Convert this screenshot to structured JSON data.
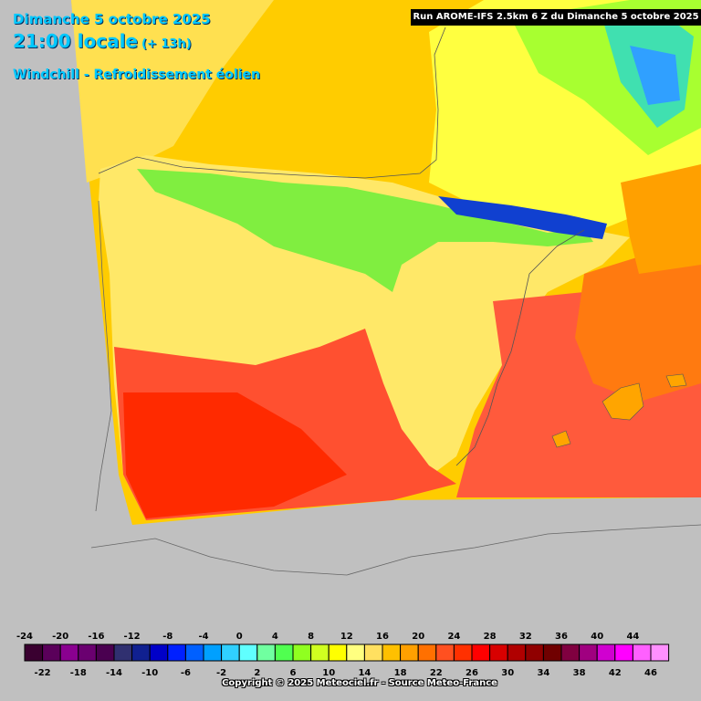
{
  "header": {
    "date": "Dimanche 5 octobre 2025",
    "time": "21:00 locale",
    "lead": "(+ 13h)",
    "parameter": "Windchill - Refroidissement éolien",
    "run": "Run AROME-IFS 2.5km 6 Z du Dimanche 5 octobre 2025"
  },
  "legend": {
    "top_labels": [
      "-24",
      "-20",
      "-16",
      "-12",
      "-8",
      "-4",
      "0",
      "4",
      "8",
      "12",
      "16",
      "20",
      "24",
      "28",
      "32",
      "36",
      "40",
      "44"
    ],
    "bottom_labels": [
      "-22",
      "-18",
      "-14",
      "-10",
      "-6",
      "-2",
      "2",
      "6",
      "10",
      "14",
      "18",
      "22",
      "26",
      "30",
      "34",
      "38",
      "42",
      "46"
    ],
    "colors": [
      "#3a0030",
      "#5a005a",
      "#8a0090",
      "#6a0070",
      "#4a0050",
      "#303070",
      "#102090",
      "#0000c8",
      "#0020ff",
      "#0060ff",
      "#00a0ff",
      "#30d0ff",
      "#60ffff",
      "#70ffa0",
      "#50ff50",
      "#90ff20",
      "#d0ff20",
      "#ffff00",
      "#ffff80",
      "#ffe060",
      "#ffc000",
      "#ffa000",
      "#ff7000",
      "#ff5020",
      "#ff3000",
      "#ff0000",
      "#d80000",
      "#b00000",
      "#900000",
      "#700000",
      "#800040",
      "#a00080",
      "#d000d0",
      "#ff00ff",
      "#ff60ff",
      "#ff90ff"
    ]
  },
  "copyright": "Copyright © 2025 Meteociel.fr - Source Meteo-France"
}
